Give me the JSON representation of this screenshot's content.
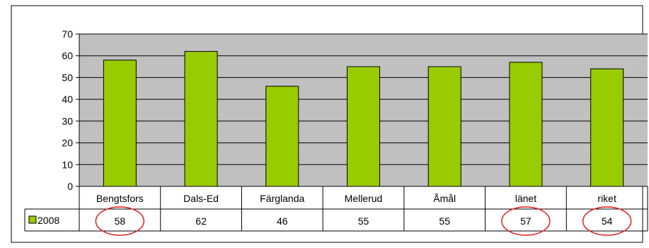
{
  "chart_data": {
    "type": "bar",
    "categories": [
      "Bengtsfors",
      "Dals-Ed",
      "Färglanda",
      "Mellerud",
      "Åmål",
      "länet",
      "riket"
    ],
    "series": [
      {
        "name": "2008",
        "values": [
          58,
          62,
          46,
          55,
          55,
          57,
          54
        ]
      }
    ],
    "ylim": [
      0,
      70
    ],
    "yticks": [
      0,
      10,
      20,
      30,
      40,
      50,
      60,
      70
    ],
    "grid": true,
    "legend": "data-table-left",
    "highlighted_categories": [
      "Bengtsfors",
      "länet",
      "riket"
    ],
    "colors": {
      "bar": "#99cc00",
      "plot_background": "#c0c0c0",
      "highlight_ring": "#e02020",
      "axis": "#000000"
    }
  }
}
